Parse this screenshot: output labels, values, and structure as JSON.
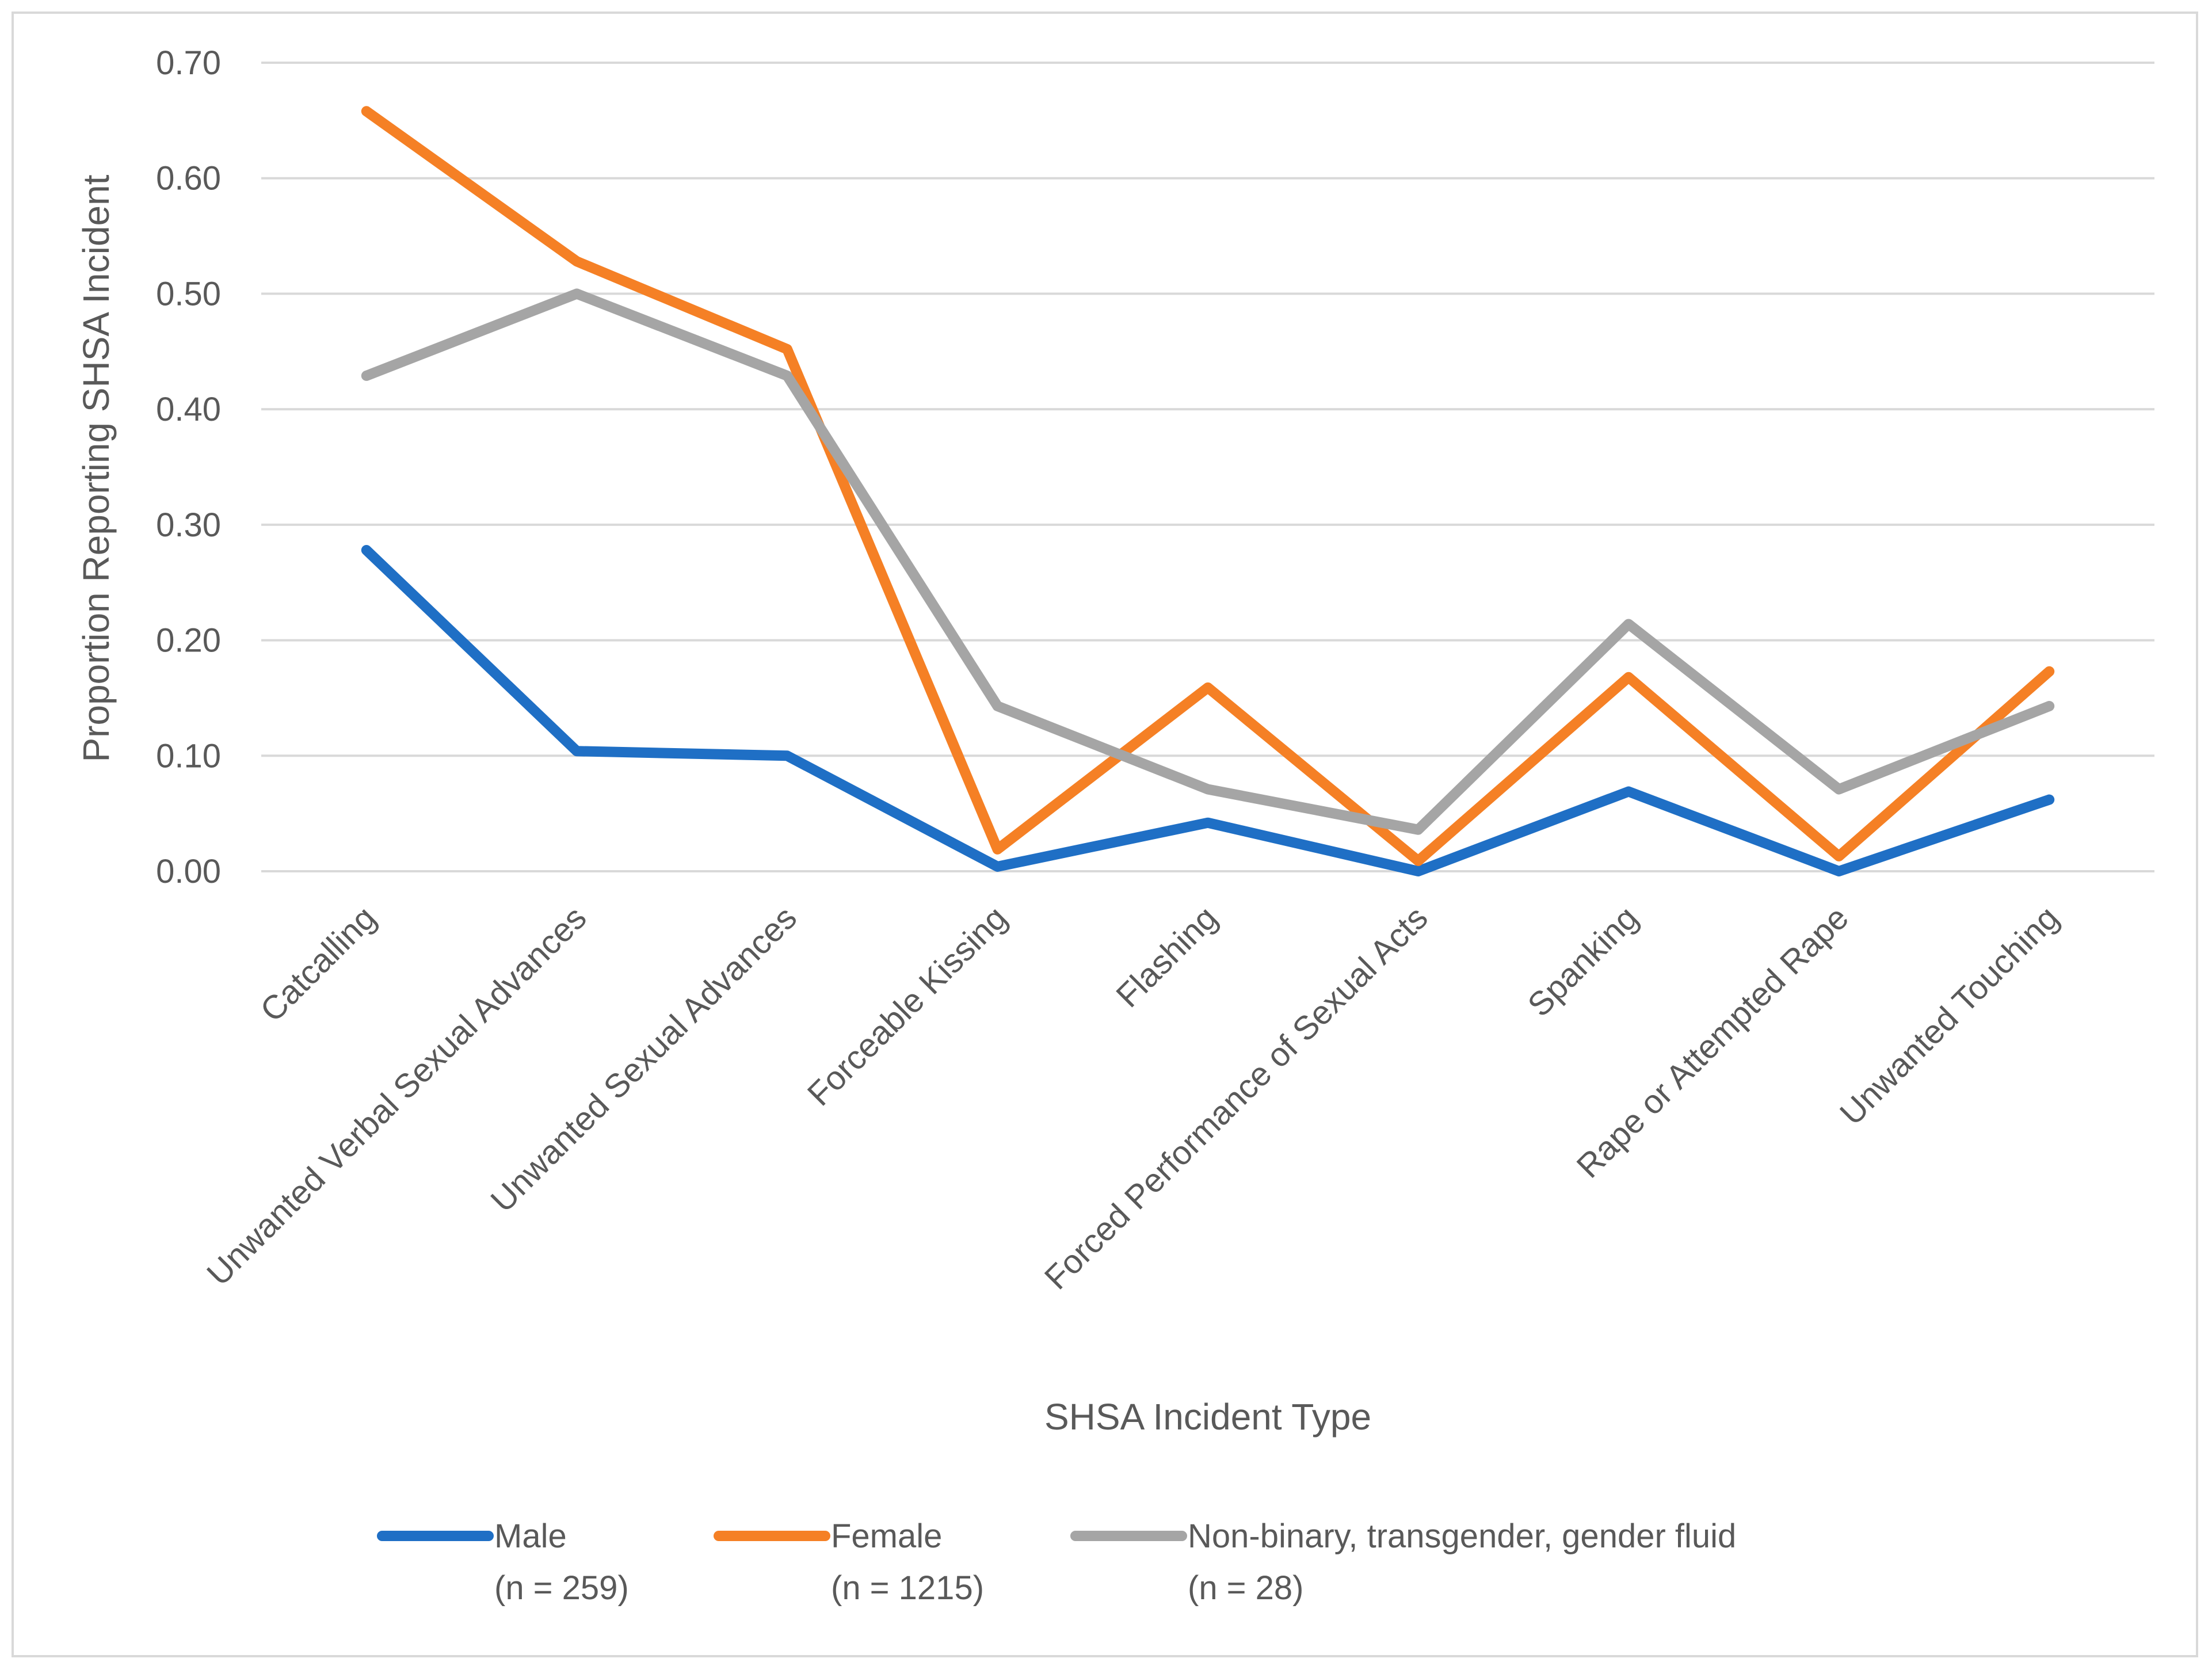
{
  "chart_data": {
    "type": "line",
    "title": "",
    "xlabel": "SHSA Incident Type",
    "ylabel": "Proportion Reporting SHSA Incident",
    "ylim": [
      0,
      0.7
    ],
    "y_ticks": [
      "0.00",
      "0.10",
      "0.20",
      "0.30",
      "0.40",
      "0.50",
      "0.60",
      "0.70"
    ],
    "grid": "horizontal",
    "legend_position": "bottom",
    "categories": [
      "Catcalling",
      "Unwanted Verbal Sexual Advances",
      "Unwanted Sexual Advances",
      "Forceable Kissing",
      "Flashing",
      "Forced Performance of Sexual Acts",
      "Spanking",
      "Rape or Attempted Rape",
      "Unwanted Touching"
    ],
    "series": [
      {
        "name": "Male",
        "n_label": "(n = 259)",
        "color": "#1f6fc5",
        "values": [
          0.278,
          0.104,
          0.1,
          0.004,
          0.042,
          0.0,
          0.069,
          0.0,
          0.062
        ]
      },
      {
        "name": "Female",
        "n_label": "(n = 1215)",
        "color": "#f58025",
        "values": [
          0.658,
          0.528,
          0.452,
          0.019,
          0.159,
          0.009,
          0.168,
          0.013,
          0.173
        ]
      },
      {
        "name": "Non-binary, transgender, gender fluid",
        "n_label": "(n = 28)",
        "color": "#a5a5a5",
        "values": [
          0.429,
          0.5,
          0.429,
          0.143,
          0.071,
          0.036,
          0.214,
          0.071,
          0.143
        ]
      }
    ]
  }
}
